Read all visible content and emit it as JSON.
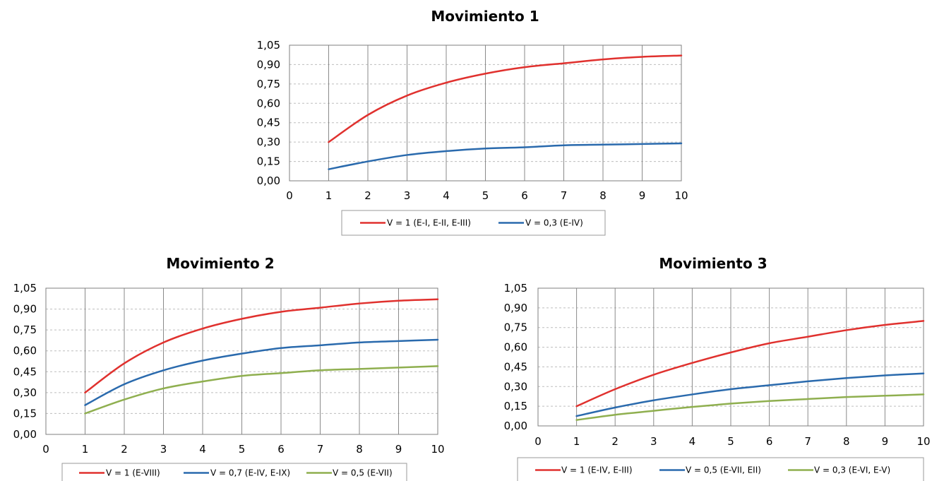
{
  "chart_data": [
    {
      "type": "line",
      "title": "Movimiento 1",
      "xlim": [
        0,
        10
      ],
      "ylim": [
        0,
        1.05
      ],
      "x_ticks": [
        "0",
        "1",
        "2",
        "3",
        "4",
        "5",
        "6",
        "7",
        "8",
        "9",
        "10"
      ],
      "y_ticks": [
        "0,00",
        "0,15",
        "0,30",
        "0,45",
        "0,60",
        "0,75",
        "0,90",
        "1,05"
      ],
      "grid": true,
      "legend": "bottom",
      "x": [
        1,
        2,
        3,
        4,
        5,
        6,
        7,
        8,
        9,
        10
      ],
      "series": [
        {
          "name": "V = 1 (E-I, E-II, E-III)",
          "color": "#e0312e",
          "values": [
            0.3,
            0.51,
            0.66,
            0.76,
            0.83,
            0.88,
            0.91,
            0.94,
            0.96,
            0.97
          ]
        },
        {
          "name": "V = 0,3 (E-IV)",
          "color": "#2a6aad",
          "values": [
            0.09,
            0.15,
            0.2,
            0.23,
            0.25,
            0.26,
            0.275,
            0.28,
            0.285,
            0.29
          ]
        }
      ]
    },
    {
      "type": "line",
      "title": "Movimiento 2",
      "xlim": [
        0,
        10
      ],
      "ylim": [
        0,
        1.05
      ],
      "x_ticks": [
        "0",
        "1",
        "2",
        "3",
        "4",
        "5",
        "6",
        "7",
        "8",
        "9",
        "10"
      ],
      "y_ticks": [
        "0,00",
        "0,15",
        "0,30",
        "0,45",
        "0,60",
        "0,75",
        "0,90",
        "1,05"
      ],
      "grid": true,
      "legend": "bottom",
      "x": [
        1,
        2,
        3,
        4,
        5,
        6,
        7,
        8,
        9,
        10
      ],
      "series": [
        {
          "name": "V = 1 (E-VIII)",
          "color": "#e0312e",
          "values": [
            0.3,
            0.51,
            0.66,
            0.76,
            0.83,
            0.88,
            0.91,
            0.94,
            0.96,
            0.97
          ]
        },
        {
          "name": "V = 0,7 (E-IV, E-IX)",
          "color": "#2a6aad",
          "values": [
            0.21,
            0.36,
            0.46,
            0.53,
            0.58,
            0.62,
            0.64,
            0.66,
            0.67,
            0.68
          ]
        },
        {
          "name": "V = 0,5 (E-VII)",
          "color": "#8faf4f",
          "values": [
            0.15,
            0.25,
            0.33,
            0.38,
            0.42,
            0.44,
            0.46,
            0.47,
            0.48,
            0.49
          ]
        }
      ]
    },
    {
      "type": "line",
      "title": "Movimiento 3",
      "xlim": [
        0,
        10
      ],
      "ylim": [
        0,
        1.05
      ],
      "x_ticks": [
        "0",
        "1",
        "2",
        "3",
        "4",
        "5",
        "6",
        "7",
        "8",
        "9",
        "10"
      ],
      "y_ticks": [
        "0,00",
        "0,15",
        "0,30",
        "0,45",
        "0,60",
        "0,75",
        "0,90",
        "1,05"
      ],
      "grid": true,
      "legend": "bottom",
      "x": [
        1,
        2,
        3,
        4,
        5,
        6,
        7,
        8,
        9,
        10
      ],
      "series": [
        {
          "name": "V = 1 (E-IV, E-III)",
          "color": "#e0312e",
          "values": [
            0.15,
            0.28,
            0.39,
            0.48,
            0.56,
            0.63,
            0.68,
            0.73,
            0.77,
            0.8
          ]
        },
        {
          "name": "V = 0,5 (E-VII, EII)",
          "color": "#2a6aad",
          "values": [
            0.075,
            0.14,
            0.195,
            0.24,
            0.28,
            0.31,
            0.34,
            0.365,
            0.385,
            0.4
          ]
        },
        {
          "name": "V = 0,3 (E-VI, E-V)",
          "color": "#8faf4f",
          "values": [
            0.045,
            0.085,
            0.115,
            0.145,
            0.17,
            0.19,
            0.205,
            0.22,
            0.23,
            0.24
          ]
        }
      ]
    }
  ]
}
